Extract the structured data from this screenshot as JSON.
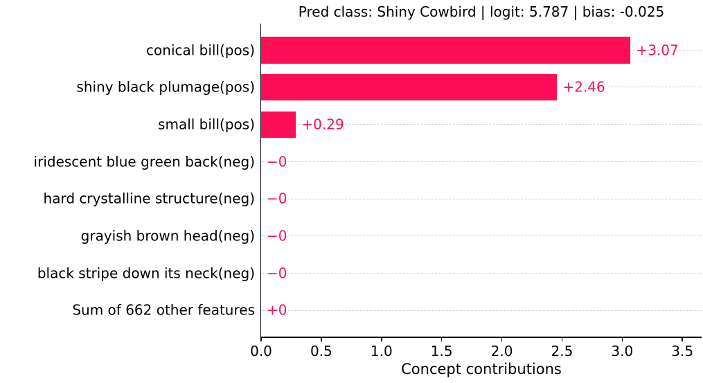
{
  "chart_data": {
    "type": "bar",
    "orientation": "horizontal",
    "title": "Pred class: Shiny Cowbird | logit: 5.787 | bias: -0.025",
    "xlabel": "Concept contributions",
    "categories": [
      "conical bill(pos)",
      "shiny black plumage(pos)",
      "small bill(pos)",
      "iridescent blue green back(neg)",
      "hard crystalline structure(neg)",
      "grayish brown head(neg)",
      "black stripe down its neck(neg)",
      "Sum of 662 other features"
    ],
    "values": [
      3.07,
      2.46,
      0.29,
      0,
      0,
      0,
      0,
      0
    ],
    "value_labels": [
      "+3.07",
      "+2.46",
      "+0.29",
      "−0",
      "−0",
      "−0",
      "−0",
      "+0"
    ],
    "x_ticks": [
      0.0,
      0.5,
      1.0,
      1.5,
      2.0,
      2.5,
      3.0,
      3.5
    ],
    "x_tick_labels": [
      "0.0",
      "0.5",
      "1.0",
      "1.5",
      "2.0",
      "2.5",
      "3.0",
      "3.5"
    ],
    "xlim": [
      0,
      3.66
    ],
    "grid": "horizontal-dotted",
    "legend": "none",
    "colors": {
      "bar": "#ff0d57",
      "value_label": "#ff0d57",
      "gridline": "#c9c9c9",
      "axis": "#000000",
      "text": "#000000"
    }
  }
}
